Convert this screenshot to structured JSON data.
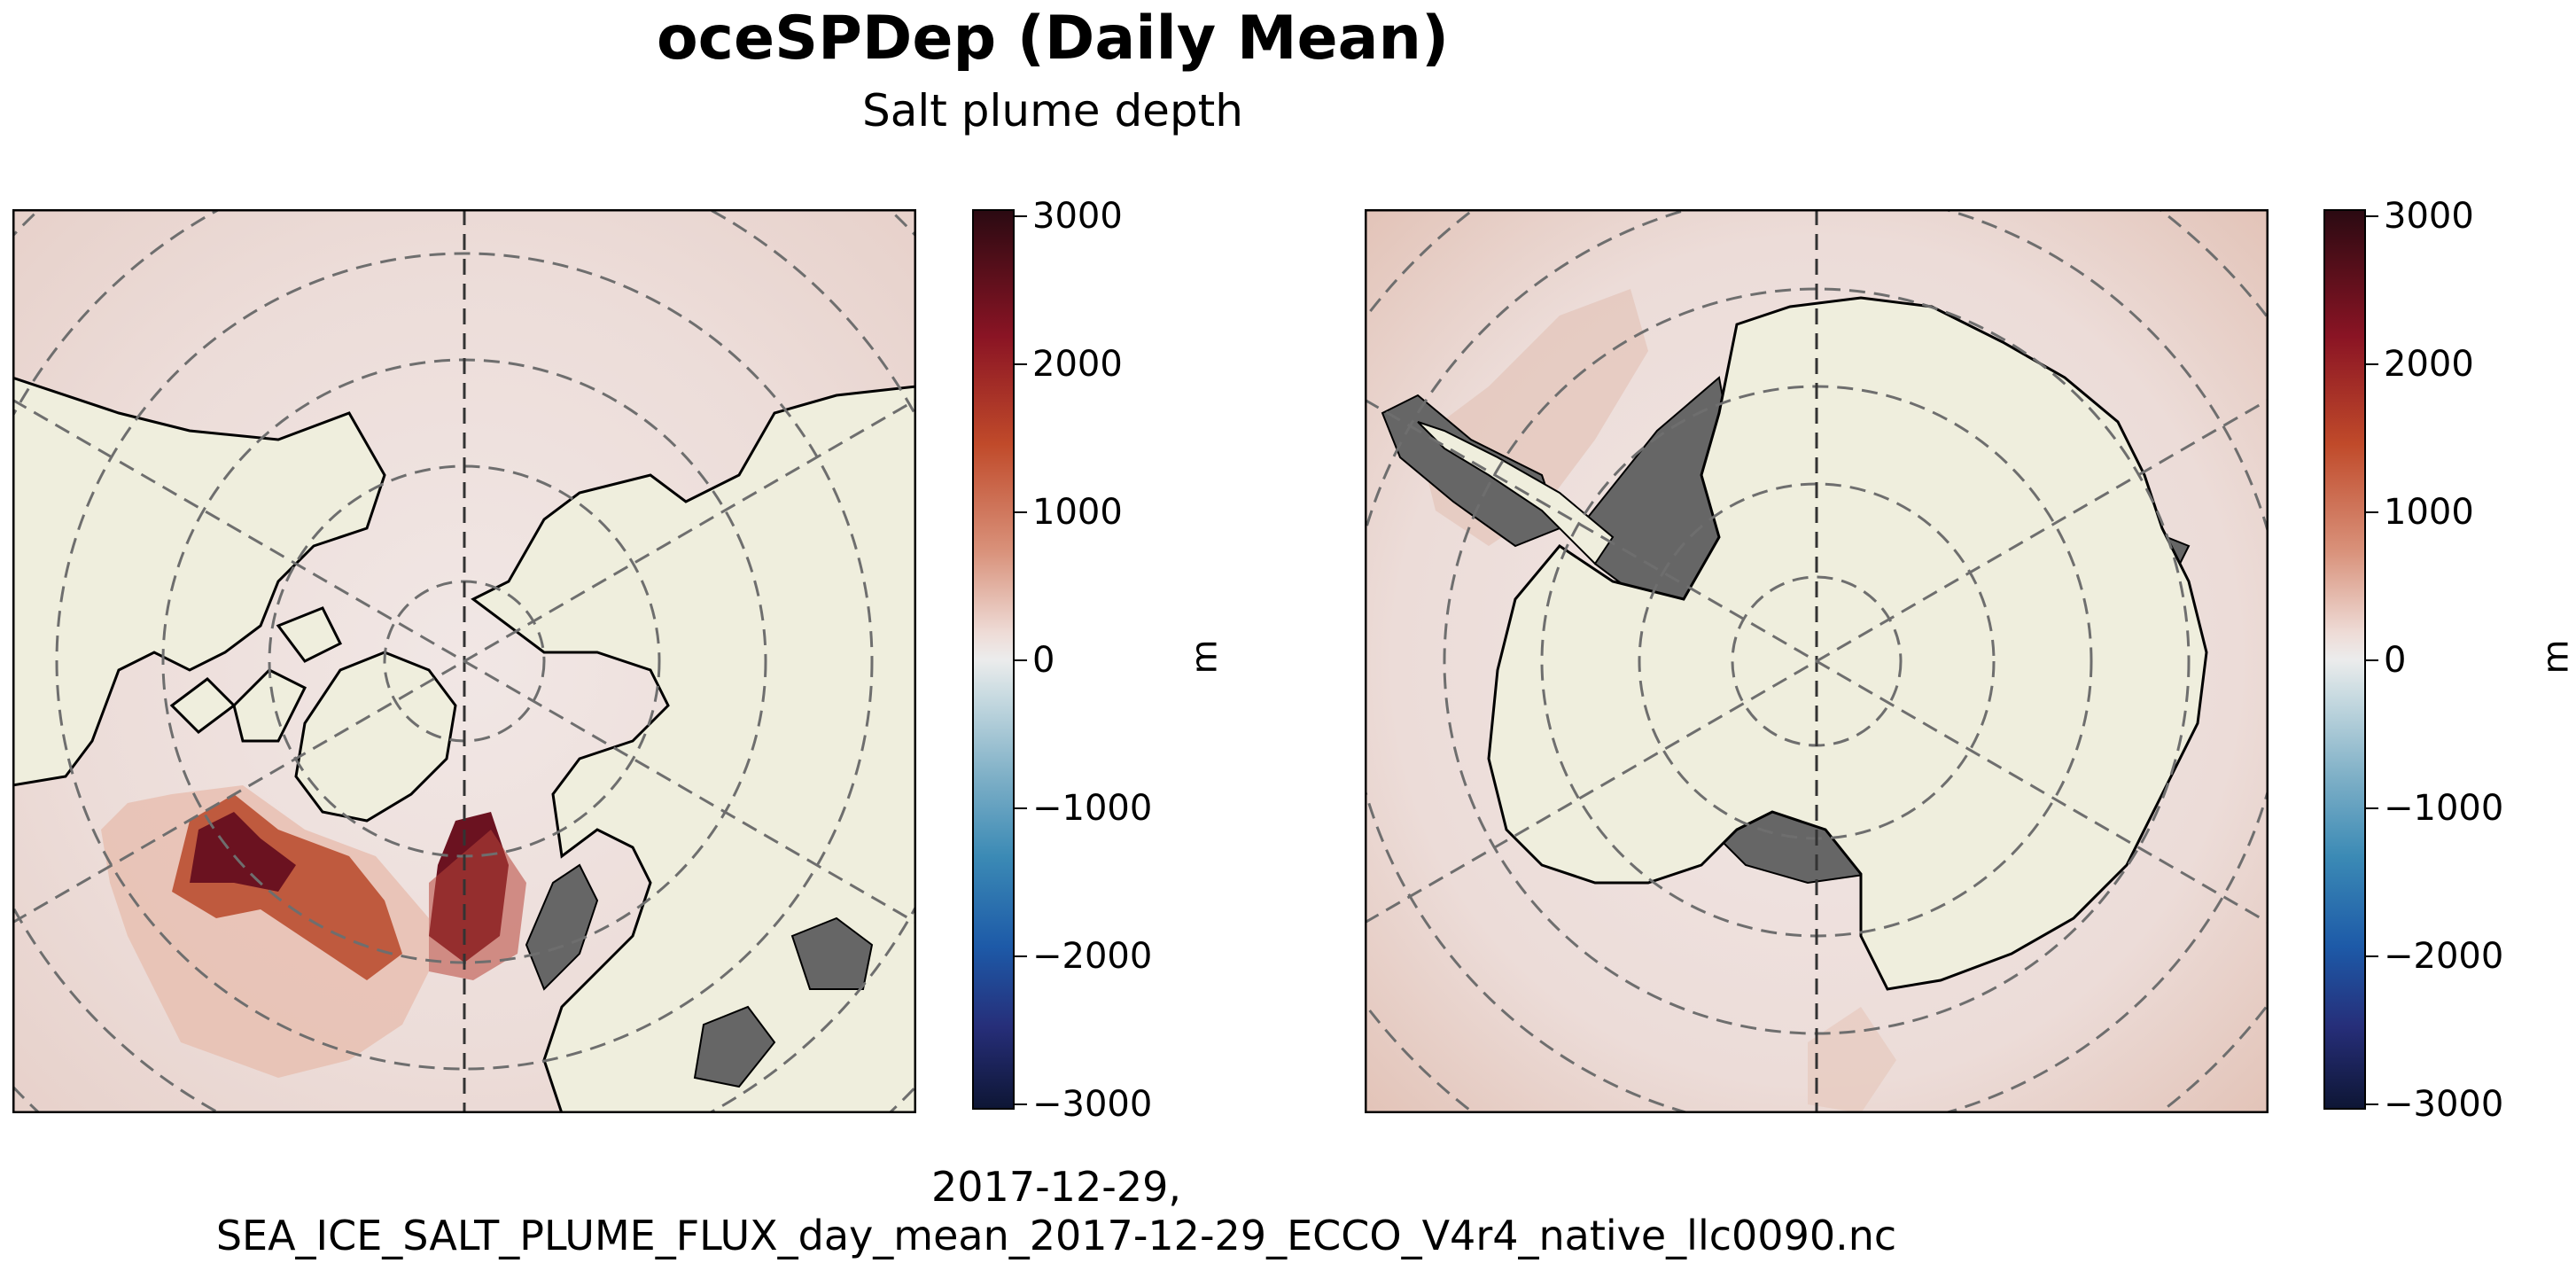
{
  "title": "oceSPDep (Daily Mean)",
  "subtitle": "Salt plume depth",
  "footer": {
    "line1": "2017-12-29,",
    "line2": "SEA_ICE_SALT_PLUME_FLUX_day_mean_2017-12-29_ECCO_V4r4_native_llc0090.nc"
  },
  "colors": {
    "ocean_base": "#efe3e1",
    "land": "#efeedd",
    "missing": "#666666",
    "grid": "#6e6e6e",
    "high": "#5a0f1c",
    "mid": "#c0533a",
    "low": "#e9c6bb"
  },
  "colorbar": {
    "unit": "m",
    "ticks": [
      "3000",
      "2000",
      "1000",
      "0",
      "−1000",
      "−2000",
      "−3000"
    ],
    "range": [
      -3000,
      3000
    ],
    "colormap": "balance"
  },
  "maps": [
    {
      "name": "north-polar-map",
      "projection": "north polar stereographic"
    },
    {
      "name": "south-polar-map",
      "projection": "south polar stereographic"
    }
  ]
}
